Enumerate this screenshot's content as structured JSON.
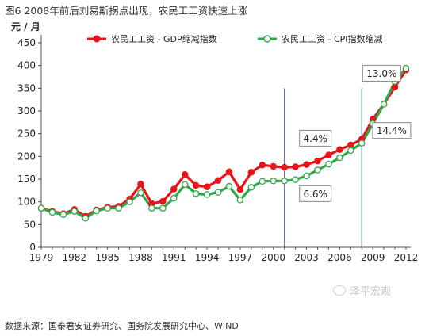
{
  "figure": {
    "title": "图6  2008年前后刘易斯拐点出现，农民工工资快速上涨",
    "source": "数据来源：国泰君安证券研究、国务院发展研究中心、WIND",
    "watermark": "泽平宏观"
  },
  "chart_data": {
    "type": "line",
    "ylabel": "元 / 月",
    "ylim": [
      0,
      450
    ],
    "yticks": [
      0,
      50,
      100,
      150,
      200,
      250,
      300,
      350,
      400,
      450
    ],
    "xlim": [
      1979,
      2012
    ],
    "xticks": [
      1979,
      1982,
      1985,
      1988,
      1991,
      1994,
      1997,
      2000,
      2003,
      2006,
      2009,
      2012
    ],
    "x": [
      1979,
      1980,
      1981,
      1982,
      1983,
      1984,
      1985,
      1986,
      1987,
      1988,
      1989,
      1990,
      1991,
      1992,
      1993,
      1994,
      1995,
      1996,
      1997,
      1998,
      1999,
      2000,
      2001,
      2002,
      2003,
      2004,
      2005,
      2006,
      2007,
      2008,
      2009,
      2010,
      2011,
      2012
    ],
    "series": [
      {
        "name": "农民工工资 - GDP缩减指数",
        "color": "#e8141a",
        "marker": "filled",
        "values": [
          86,
          79,
          74,
          83,
          68,
          82,
          88,
          90,
          106,
          139,
          96,
          101,
          128,
          160,
          136,
          133,
          147,
          166,
          127,
          165,
          181,
          178,
          176,
          177,
          182,
          190,
          203,
          215,
          225,
          238,
          282,
          315,
          353,
          390
        ]
      },
      {
        "name": "农民工工资 - CPI指数缩减",
        "color": "#2da84a",
        "marker": "hollow",
        "values": [
          86,
          77,
          72,
          79,
          64,
          80,
          86,
          86,
          100,
          120,
          86,
          86,
          108,
          138,
          118,
          116,
          121,
          134,
          104,
          132,
          145,
          146,
          146,
          149,
          157,
          170,
          183,
          197,
          213,
          229,
          272,
          315,
          365,
          394
        ]
      }
    ],
    "vlines": [
      2001,
      2008
    ],
    "annotations": [
      {
        "text": "13.0%",
        "x": 2009.8,
        "y": 383
      },
      {
        "text": "4.4%",
        "x": 2003.8,
        "y": 240
      },
      {
        "text": "14.4%",
        "x": 2010.7,
        "y": 257
      },
      {
        "text": "6.6%",
        "x": 2003.8,
        "y": 118
      }
    ],
    "legend_position": "top"
  }
}
